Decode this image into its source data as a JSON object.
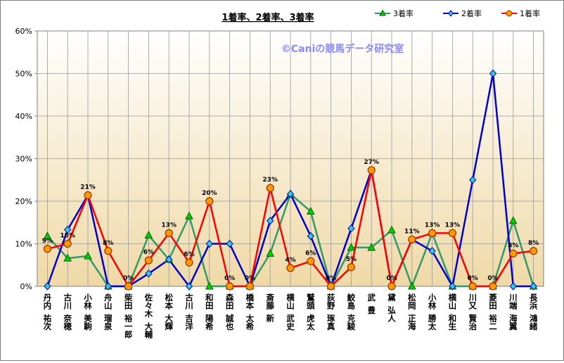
{
  "chart_data": {
    "type": "line",
    "title": "1着率、2着率、3着率",
    "watermark": "©Caniの競馬データ研究室",
    "ylim": [
      0,
      60
    ],
    "yticks": [
      "0%",
      "10%",
      "20%",
      "30%",
      "40%",
      "50%",
      "60%"
    ],
    "legend_position": "top-right",
    "grid": true,
    "categories": [
      "丹内 祐次",
      "古川 奈穂",
      "小林 美駒",
      "舟山 瑠泉",
      "柴田 裕一郎",
      "佐々木 大輔",
      "松本 大輝",
      "古川 吉洋",
      "和田 陽希",
      "森田 誠也",
      "橋本 太希",
      "斎藤 新",
      "横山 武史",
      "鷲頭 虎太",
      "荻野 琢真",
      "鮫島 克駿",
      "武 豊",
      "黛 弘人",
      "松岡 正海",
      "小林 勝太",
      "横山 和生",
      "川又 賢治",
      "菱田 裕二",
      "川端 海翼",
      "長浜 鴻緒"
    ],
    "series": [
      {
        "name": "3着率",
        "color": "#339966",
        "marker": "triangle",
        "marker_fill": "#00cc00",
        "values": [
          11.8,
          6.6,
          7.1,
          0,
          0,
          12.0,
          6.3,
          16.5,
          0,
          0,
          0,
          7.7,
          21.7,
          17.6,
          0,
          9.1,
          9.1,
          13.2,
          0,
          12.5,
          0,
          0,
          0,
          15.4,
          0
        ]
      },
      {
        "name": "2着率",
        "color": "#0000cc",
        "marker": "diamond",
        "marker_fill": "#33cccc",
        "values": [
          0,
          13.3,
          21.4,
          0,
          0,
          3.0,
          6.3,
          0,
          10.0,
          10.0,
          0,
          15.4,
          21.7,
          11.8,
          0,
          13.6,
          27.3,
          0,
          11.0,
          8.3,
          0,
          25.0,
          50.0,
          0,
          0
        ]
      },
      {
        "name": "1着率",
        "color": "#ff0000",
        "marker": "circle",
        "marker_fill": "#ff9900",
        "values": [
          8.8,
          10.0,
          21.4,
          8.3,
          0,
          6.1,
          12.5,
          5.6,
          20.0,
          0,
          0,
          23.1,
          4.3,
          5.9,
          0,
          4.5,
          27.3,
          0,
          11.0,
          12.5,
          12.5,
          0,
          0,
          7.7,
          8.3
        ]
      }
    ],
    "data_labels": [
      "9%",
      "10%",
      "21%",
      "8%",
      "0%",
      "6%",
      "13%",
      "6%",
      "20%",
      "0%",
      "0%",
      "23%",
      "4%",
      "6%",
      "0%",
      "5%",
      "27%",
      "0%",
      "11%",
      "13%",
      "13%",
      "0%",
      "0%",
      "8%",
      "8%"
    ]
  }
}
